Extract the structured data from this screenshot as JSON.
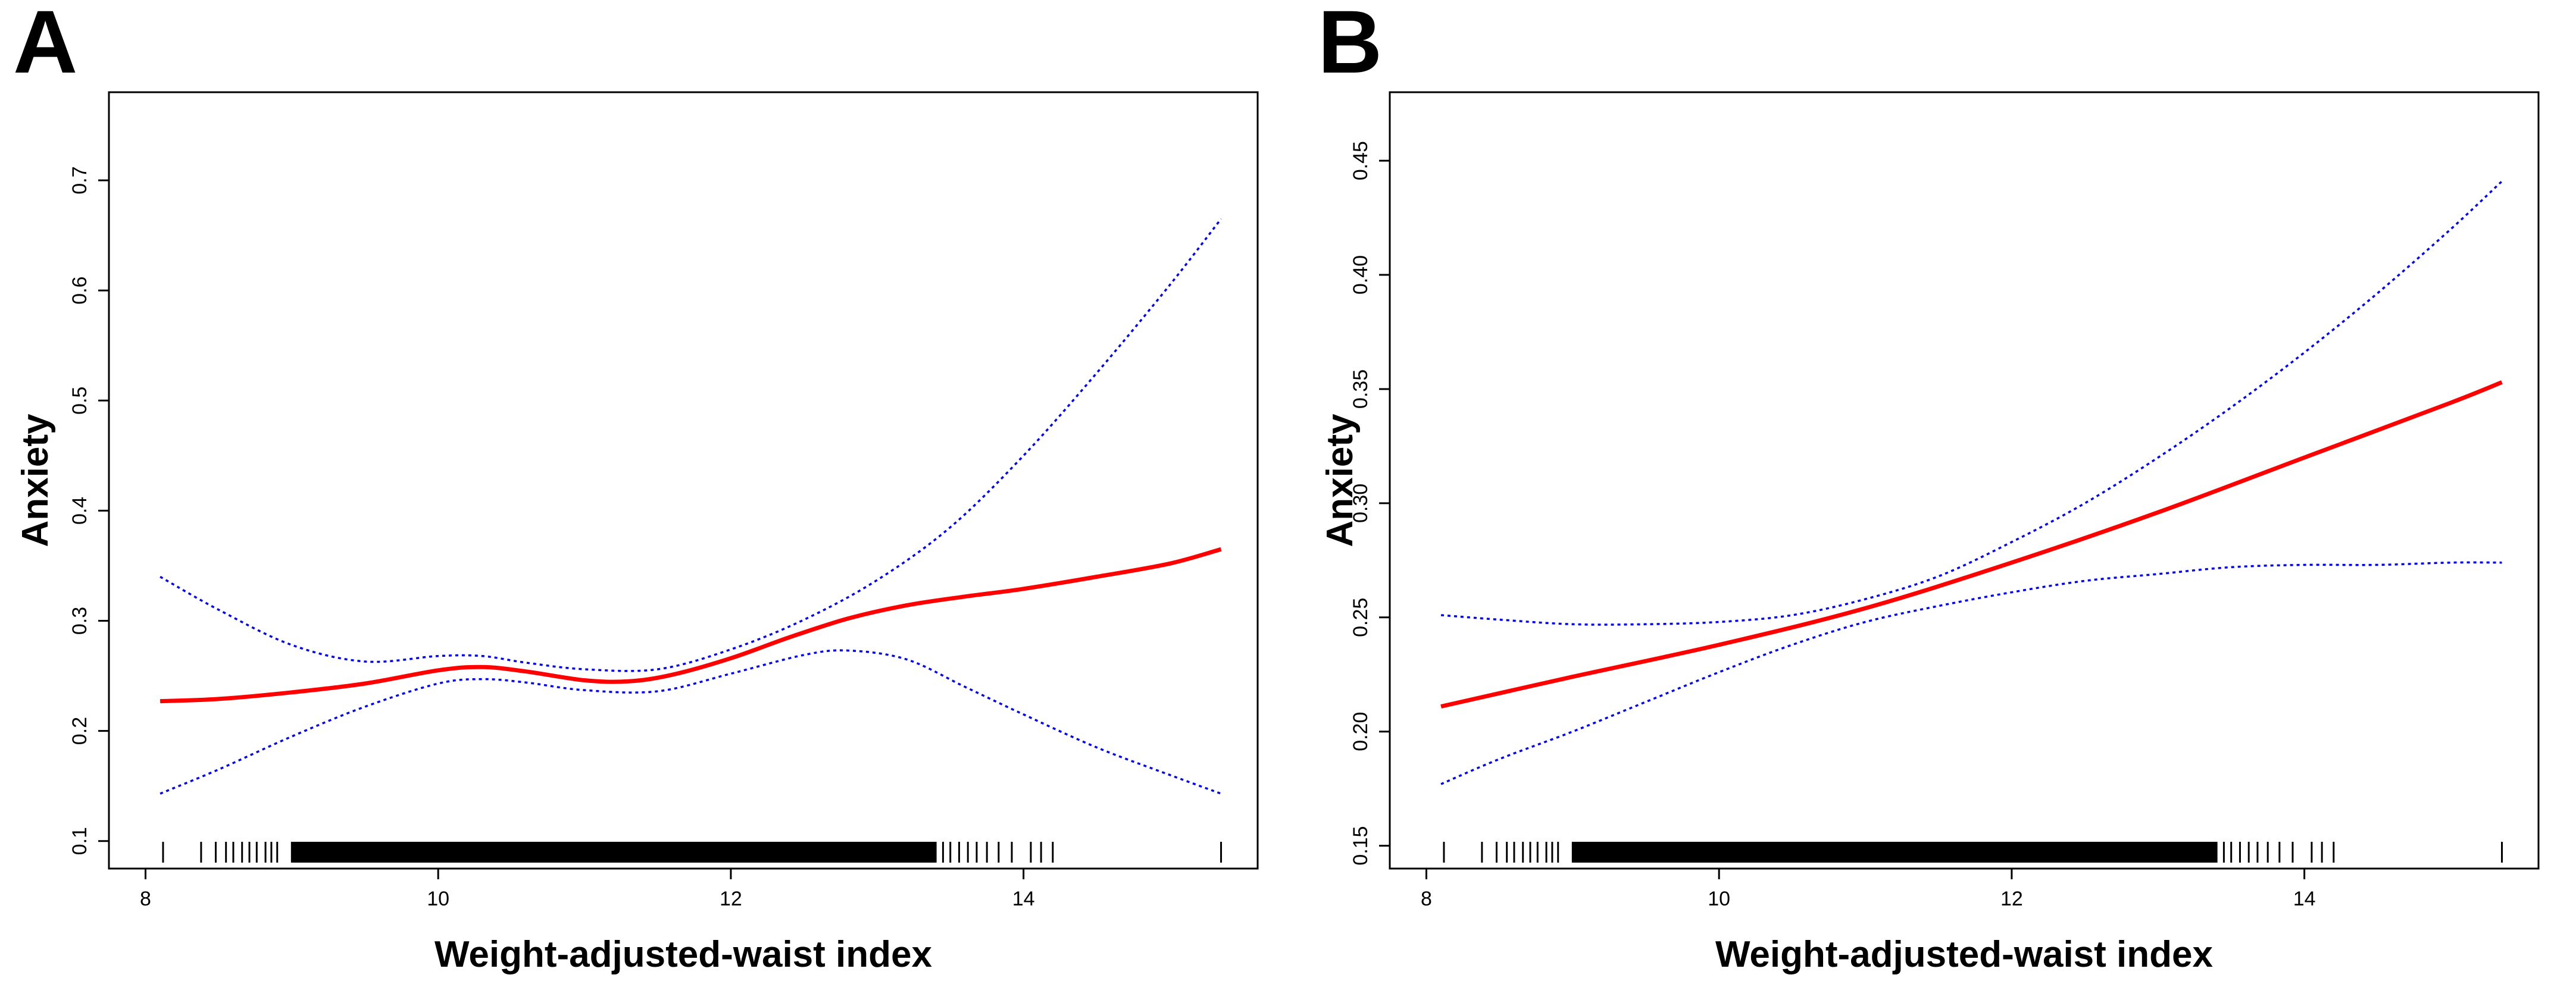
{
  "chart_data": [
    {
      "type": "line",
      "panel": "A",
      "title": "",
      "xlabel": "Weight-adjusted-waist index",
      "ylabel": "Anxiety",
      "xlim": [
        7.75,
        15.6
      ],
      "ylim": [
        0.075,
        0.78
      ],
      "xticks": [
        8,
        10,
        12,
        14
      ],
      "xtick_labels": [
        "8",
        "10",
        "12",
        "14"
      ],
      "yticks": [
        0.1,
        0.2,
        0.3,
        0.4,
        0.5,
        0.6,
        0.7
      ],
      "ytick_labels": [
        "0.1",
        "0.2",
        "0.3",
        "0.4",
        "0.5",
        "0.6",
        "0.7"
      ],
      "grid": false,
      "legend": "none",
      "series": [
        {
          "name": "fit",
          "color": "#ff0000",
          "x": [
            8.1,
            8.5,
            9.0,
            9.5,
            10.0,
            10.3,
            10.6,
            11.0,
            11.3,
            11.6,
            12.0,
            12.4,
            12.8,
            13.2,
            13.6,
            14.0,
            14.5,
            15.0,
            15.35
          ],
          "y": [
            0.227,
            0.229,
            0.235,
            0.243,
            0.255,
            0.258,
            0.254,
            0.246,
            0.245,
            0.251,
            0.266,
            0.285,
            0.302,
            0.314,
            0.322,
            0.329,
            0.34,
            0.352,
            0.365
          ]
        },
        {
          "name": "upper 95% CI",
          "color": "#0000ff",
          "x": [
            8.1,
            8.5,
            9.0,
            9.5,
            10.0,
            10.3,
            10.6,
            11.0,
            11.5,
            12.0,
            12.5,
            13.0,
            13.5,
            14.0,
            14.5,
            15.0,
            15.35
          ],
          "y": [
            0.34,
            0.31,
            0.278,
            0.263,
            0.268,
            0.268,
            0.262,
            0.256,
            0.256,
            0.274,
            0.301,
            0.337,
            0.385,
            0.45,
            0.525,
            0.605,
            0.665
          ]
        },
        {
          "name": "lower 95% CI",
          "color": "#0000ff",
          "x": [
            8.1,
            8.5,
            9.0,
            9.5,
            10.0,
            10.3,
            10.6,
            11.0,
            11.5,
            12.0,
            12.5,
            12.8,
            13.2,
            13.6,
            14.0,
            14.5,
            15.0,
            15.35
          ],
          "y": [
            0.143,
            0.165,
            0.195,
            0.222,
            0.243,
            0.247,
            0.244,
            0.237,
            0.236,
            0.252,
            0.269,
            0.273,
            0.265,
            0.24,
            0.215,
            0.185,
            0.16,
            0.143
          ]
        }
      ],
      "rug": {
        "sparse_left": [
          8.12,
          8.38,
          8.48,
          8.55,
          8.6,
          8.66,
          8.71,
          8.76,
          8.82,
          8.86,
          8.9
        ],
        "dense_range": [
          9.0,
          13.4
        ],
        "sparse_right": [
          13.45,
          13.5,
          13.56,
          13.62,
          13.68,
          13.75,
          13.83,
          13.92,
          14.05,
          14.12,
          14.2,
          15.35
        ]
      }
    },
    {
      "type": "line",
      "panel": "B",
      "title": "",
      "xlabel": "Weight-adjusted-waist index",
      "ylabel": "Anxiety",
      "xlim": [
        7.75,
        15.6
      ],
      "ylim": [
        0.14,
        0.48
      ],
      "xticks": [
        8,
        10,
        12,
        14
      ],
      "xtick_labels": [
        "8",
        "10",
        "12",
        "14"
      ],
      "yticks": [
        0.15,
        0.2,
        0.25,
        0.3,
        0.35,
        0.4,
        0.45
      ],
      "ytick_labels": [
        "0.15",
        "0.20",
        "0.25",
        "0.30",
        "0.35",
        "0.40",
        "0.45"
      ],
      "grid": false,
      "legend": "none",
      "series": [
        {
          "name": "fit",
          "color": "#ff0000",
          "x": [
            8.1,
            9.0,
            10.0,
            11.0,
            12.0,
            13.0,
            14.0,
            15.0,
            15.35
          ],
          "y": [
            0.211,
            0.224,
            0.238,
            0.254,
            0.274,
            0.296,
            0.32,
            0.344,
            0.353
          ]
        },
        {
          "name": "upper 95% CI",
          "color": "#0000ff",
          "x": [
            8.1,
            8.5,
            9.0,
            9.5,
            10.0,
            10.5,
            11.0,
            11.5,
            12.0,
            12.5,
            13.0,
            13.5,
            14.0,
            14.5,
            15.0,
            15.35
          ],
          "y": [
            0.251,
            0.249,
            0.247,
            0.247,
            0.248,
            0.251,
            0.258,
            0.268,
            0.283,
            0.3,
            0.32,
            0.342,
            0.366,
            0.392,
            0.42,
            0.441
          ]
        },
        {
          "name": "lower 95% CI",
          "color": "#0000ff",
          "x": [
            8.1,
            8.5,
            9.0,
            9.5,
            10.0,
            10.5,
            11.0,
            11.5,
            12.0,
            12.5,
            13.0,
            13.5,
            14.0,
            14.5,
            15.0,
            15.35
          ],
          "y": [
            0.177,
            0.188,
            0.2,
            0.213,
            0.226,
            0.238,
            0.248,
            0.255,
            0.261,
            0.266,
            0.269,
            0.272,
            0.273,
            0.273,
            0.274,
            0.274
          ]
        }
      ],
      "rug": {
        "sparse_left": [
          8.12,
          8.38,
          8.48,
          8.55,
          8.6,
          8.66,
          8.71,
          8.76,
          8.82,
          8.86,
          8.9
        ],
        "dense_range": [
          9.0,
          13.4
        ],
        "sparse_right": [
          13.45,
          13.5,
          13.56,
          13.62,
          13.68,
          13.75,
          13.83,
          13.92,
          14.05,
          14.12,
          14.2,
          15.35
        ]
      }
    }
  ]
}
